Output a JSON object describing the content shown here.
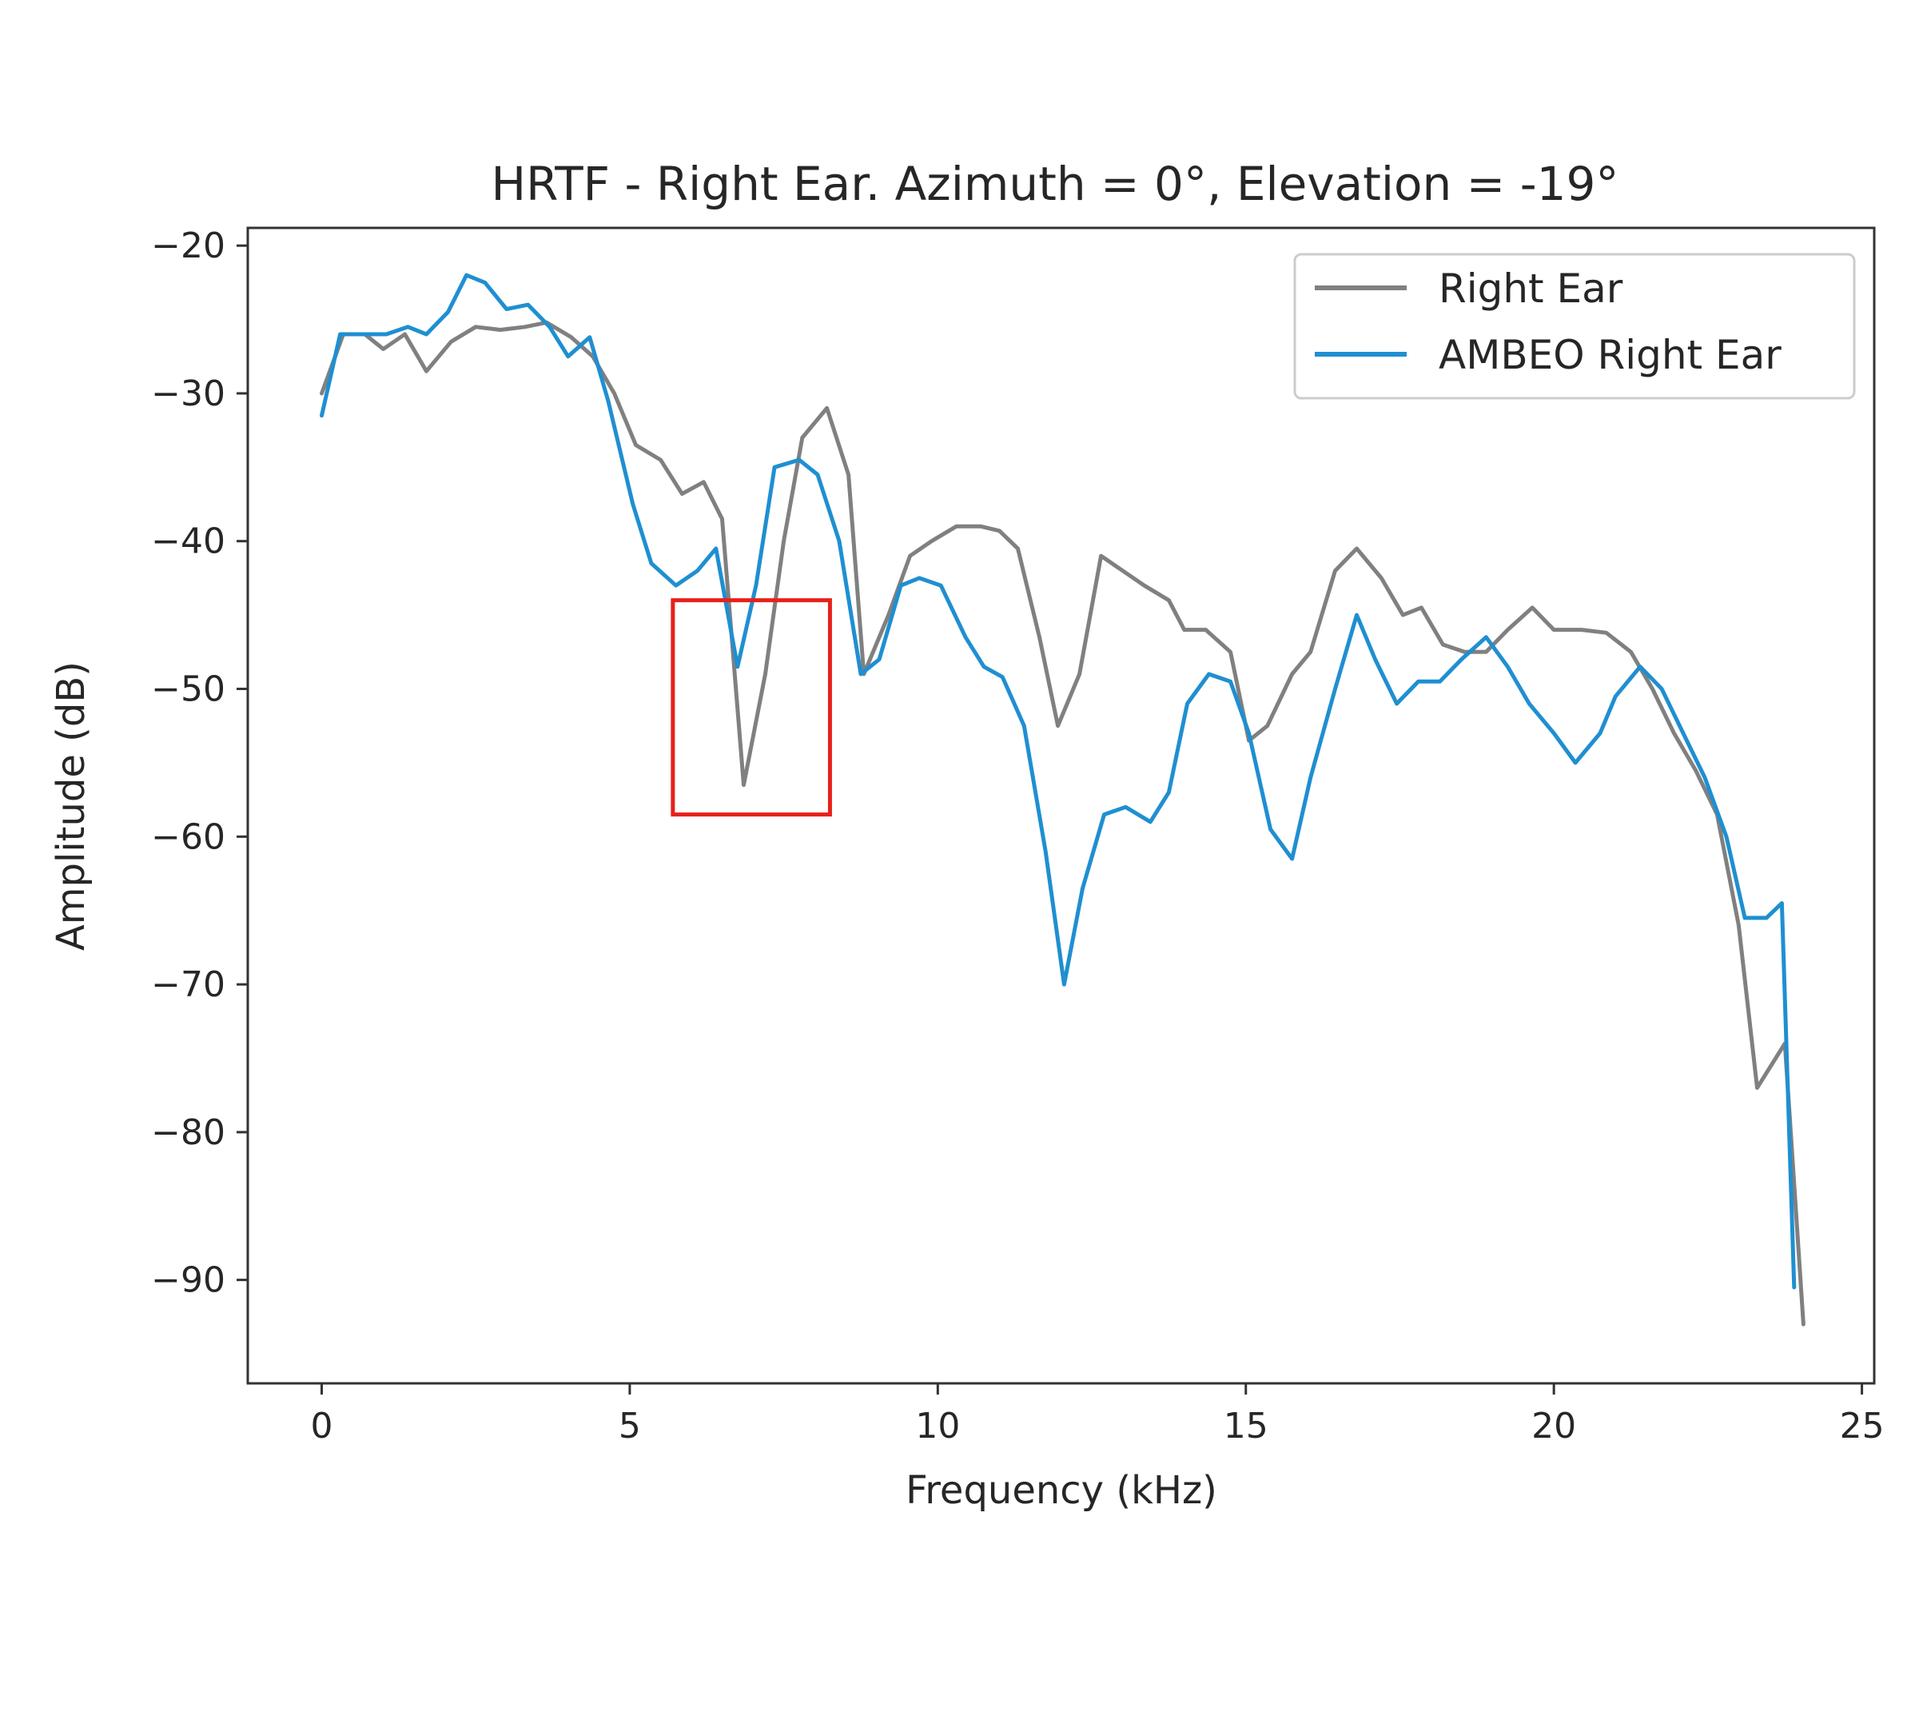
{
  "chart_data": {
    "type": "line",
    "title": "HRTF - Right Ear.  Azimuth = 0°, Elevation = -19°",
    "xlabel": "Frequency (kHz)",
    "ylabel": "Amplitude (dB)",
    "xlim": [
      -1.2,
      25.2
    ],
    "ylim": [
      -97,
      -18.8
    ],
    "xticks": [
      0,
      5,
      10,
      15,
      20,
      25
    ],
    "xtick_labels": [
      "0",
      "5",
      "10",
      "15",
      "20",
      "25"
    ],
    "yticks": [
      -20,
      -30,
      -40,
      -50,
      -60,
      -70,
      -80,
      -90
    ],
    "ytick_labels": [
      "−20",
      "−30",
      "−40",
      "−50",
      "−60",
      "−70",
      "−80",
      "−90"
    ],
    "grid": false,
    "legend_position": "top-right",
    "series": [
      {
        "name": "Right Ear",
        "color": "#808080",
        "points": [
          [
            0,
            -30
          ],
          [
            0.35,
            -26
          ],
          [
            0.7,
            -26
          ],
          [
            1.0,
            -27
          ],
          [
            1.35,
            -26
          ],
          [
            1.7,
            -28.5
          ],
          [
            2.1,
            -26.5
          ],
          [
            2.5,
            -25.5
          ],
          [
            2.9,
            -25.7
          ],
          [
            3.3,
            -25.5
          ],
          [
            3.65,
            -25.2
          ],
          [
            4.05,
            -26.2
          ],
          [
            4.4,
            -27.5
          ],
          [
            4.75,
            -30
          ],
          [
            5.1,
            -33.5
          ],
          [
            5.5,
            -34.5
          ],
          [
            5.85,
            -36.8
          ],
          [
            6.2,
            -36
          ],
          [
            6.5,
            -38.5
          ],
          [
            6.85,
            -56.5
          ],
          [
            7.2,
            -49
          ],
          [
            7.5,
            -40
          ],
          [
            7.8,
            -33
          ],
          [
            8.2,
            -31
          ],
          [
            8.55,
            -35.5
          ],
          [
            8.8,
            -49
          ],
          [
            9.2,
            -45
          ],
          [
            9.55,
            -41
          ],
          [
            9.9,
            -40
          ],
          [
            10.3,
            -39
          ],
          [
            10.7,
            -39
          ],
          [
            11.0,
            -39.3
          ],
          [
            11.3,
            -40.5
          ],
          [
            11.65,
            -46.5
          ],
          [
            11.95,
            -52.5
          ],
          [
            12.3,
            -49
          ],
          [
            12.65,
            -41
          ],
          [
            13.0,
            -42
          ],
          [
            13.35,
            -43
          ],
          [
            13.75,
            -44
          ],
          [
            14.0,
            -46
          ],
          [
            14.35,
            -46
          ],
          [
            14.75,
            -47.5
          ],
          [
            15.05,
            -53.5
          ],
          [
            15.35,
            -52.5
          ],
          [
            15.75,
            -49
          ],
          [
            16.05,
            -47.5
          ],
          [
            16.45,
            -42
          ],
          [
            16.8,
            -40.5
          ],
          [
            17.2,
            -42.5
          ],
          [
            17.55,
            -45
          ],
          [
            17.85,
            -44.5
          ],
          [
            18.2,
            -47
          ],
          [
            18.55,
            -47.5
          ],
          [
            18.9,
            -47.5
          ],
          [
            19.25,
            -46
          ],
          [
            19.65,
            -44.5
          ],
          [
            20.0,
            -46
          ],
          [
            20.45,
            -46
          ],
          [
            20.85,
            -46.2
          ],
          [
            21.25,
            -47.5
          ],
          [
            21.6,
            -50
          ],
          [
            21.95,
            -53
          ],
          [
            22.3,
            -55.5
          ],
          [
            22.65,
            -58.5
          ],
          [
            23.0,
            -66
          ],
          [
            23.3,
            -77
          ],
          [
            23.75,
            -74
          ],
          [
            24.05,
            -93
          ]
        ]
      },
      {
        "name": "AMBEO Right Ear",
        "color": "#1f8fd1",
        "points": [
          [
            0,
            -31.5
          ],
          [
            0.3,
            -26
          ],
          [
            0.7,
            -26
          ],
          [
            1.05,
            -26
          ],
          [
            1.4,
            -25.5
          ],
          [
            1.7,
            -26
          ],
          [
            2.05,
            -24.5
          ],
          [
            2.35,
            -22
          ],
          [
            2.65,
            -22.5
          ],
          [
            3.0,
            -24.3
          ],
          [
            3.35,
            -24
          ],
          [
            3.7,
            -25.5
          ],
          [
            4.0,
            -27.5
          ],
          [
            4.35,
            -26.2
          ],
          [
            4.65,
            -30.5
          ],
          [
            5.05,
            -37.5
          ],
          [
            5.35,
            -41.5
          ],
          [
            5.75,
            -43
          ],
          [
            6.1,
            -42
          ],
          [
            6.4,
            -40.5
          ],
          [
            6.75,
            -48.5
          ],
          [
            7.05,
            -43
          ],
          [
            7.35,
            -35
          ],
          [
            7.75,
            -34.5
          ],
          [
            8.05,
            -35.5
          ],
          [
            8.4,
            -40
          ],
          [
            8.75,
            -49
          ],
          [
            9.05,
            -48
          ],
          [
            9.4,
            -43
          ],
          [
            9.7,
            -42.5
          ],
          [
            10.05,
            -43
          ],
          [
            10.45,
            -46.5
          ],
          [
            10.75,
            -48.5
          ],
          [
            11.05,
            -49.2
          ],
          [
            11.4,
            -52.5
          ],
          [
            11.75,
            -61
          ],
          [
            12.05,
            -70
          ],
          [
            12.35,
            -63.5
          ],
          [
            12.7,
            -58.5
          ],
          [
            13.05,
            -58
          ],
          [
            13.45,
            -59
          ],
          [
            13.75,
            -57
          ],
          [
            14.05,
            -51
          ],
          [
            14.4,
            -49
          ],
          [
            14.75,
            -49.5
          ],
          [
            15.05,
            -53
          ],
          [
            15.4,
            -59.5
          ],
          [
            15.75,
            -61.5
          ],
          [
            16.05,
            -56
          ],
          [
            16.45,
            -50
          ],
          [
            16.8,
            -45
          ],
          [
            17.1,
            -48
          ],
          [
            17.45,
            -51
          ],
          [
            17.8,
            -49.5
          ],
          [
            18.15,
            -49.5
          ],
          [
            18.5,
            -48
          ],
          [
            18.9,
            -46.5
          ],
          [
            19.25,
            -48.5
          ],
          [
            19.6,
            -51
          ],
          [
            20.0,
            -53
          ],
          [
            20.35,
            -55
          ],
          [
            20.75,
            -53
          ],
          [
            21.0,
            -50.5
          ],
          [
            21.4,
            -48.5
          ],
          [
            21.75,
            -50
          ],
          [
            22.1,
            -53
          ],
          [
            22.45,
            -56
          ],
          [
            22.8,
            -60
          ],
          [
            23.1,
            -65.5
          ],
          [
            23.45,
            -65.5
          ],
          [
            23.7,
            -64.5
          ],
          [
            23.9,
            -90.5
          ]
        ]
      }
    ],
    "annotations": [
      {
        "type": "rectangle",
        "color": "#e8201a",
        "x0": 5.7,
        "x1": 8.25,
        "y0": -58.5,
        "y1": -44
      }
    ]
  }
}
